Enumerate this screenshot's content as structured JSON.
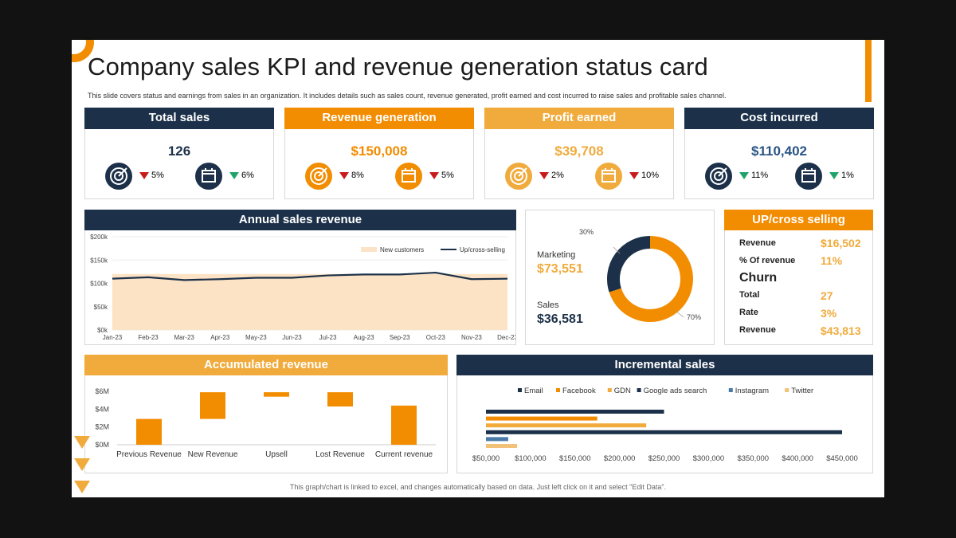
{
  "title": "Company sales KPI and revenue generation status card",
  "subtitle": "This slide covers status and earnings from sales in an organization. It includes details such as sales count, revenue generated, profit earned and cost incurred to raise sales and profitable sales channel.",
  "footer": "This graph/chart is linked to excel, and changes automatically based on data. Just left click on it and select \"Edit Data\".",
  "colors": {
    "navy": "#1c3149",
    "orange": "#f28c00",
    "gold": "#f0ab3c",
    "red": "#c81a1a",
    "green": "#1fa36a"
  },
  "kpis": [
    {
      "title": "Total sales",
      "value": "126",
      "pct1": "5%",
      "pct1_dir": "down",
      "pct2": "6%",
      "pct2_dir": "up",
      "icon1": "target-icon",
      "icon2": "calendar-icon"
    },
    {
      "title": "Revenue generation",
      "value": "$150,008",
      "pct1": "8%",
      "pct1_dir": "down",
      "pct2": "5%",
      "pct2_dir": "down",
      "icon1": "target-icon",
      "icon2": "calendar-icon"
    },
    {
      "title": "Profit earned",
      "value": "$39,708",
      "pct1": "2%",
      "pct1_dir": "down",
      "pct2": "10%",
      "pct2_dir": "down",
      "icon1": "target-icon",
      "icon2": "calendar-icon"
    },
    {
      "title": "Cost incurred",
      "value": "$110,402",
      "pct1": "11%",
      "pct1_dir": "up",
      "pct2": "1%",
      "pct2_dir": "up",
      "icon1": "target-icon",
      "icon2": "calendar-icon"
    }
  ],
  "annual": {
    "title": "Annual sales revenue",
    "legend_new": "New customers",
    "legend_up": "Up/cross-selling"
  },
  "donut": {
    "marketing_label": "Marketing",
    "marketing_value": "$73,551",
    "sales_label": "Sales",
    "sales_value": "$36,581",
    "pct_small": "30%",
    "pct_big": "70%"
  },
  "upcross": {
    "title": "UP/cross selling",
    "rows": [
      {
        "label": "Revenue",
        "value": "$16,502"
      },
      {
        "label": "% Of revenue",
        "value": "11%"
      }
    ],
    "churn_label": "Churn",
    "churn_rows": [
      {
        "label": "Total",
        "value": "27"
      },
      {
        "label": "Rate",
        "value": "3%"
      },
      {
        "label": "Revenue",
        "value": "$43,813"
      }
    ]
  },
  "accumulated": {
    "title": "Accumulated revenue"
  },
  "incremental": {
    "title": "Incremental sales"
  },
  "chart_data": [
    {
      "type": "area",
      "title": "Annual sales revenue",
      "categories": [
        "Jan-23",
        "Feb-23",
        "Mar-23",
        "Apr-23",
        "May-23",
        "Jun-23",
        "Jul-23",
        "Aug-23",
        "Sep-23",
        "Oct-23",
        "Nov-23",
        "Dec-23"
      ],
      "y_ticks": [
        "$0k",
        "$50k",
        "$100k",
        "$150k",
        "$200k"
      ],
      "ylim": [
        0,
        200000
      ],
      "series": [
        {
          "name": "New customers",
          "values": [
            120000,
            120000,
            120000,
            120000,
            120000,
            120000,
            120000,
            120000,
            120000,
            120000,
            120000,
            120000
          ]
        },
        {
          "name": "Up/cross-selling",
          "values": [
            110000,
            113000,
            107000,
            109000,
            112000,
            112000,
            117000,
            119000,
            119000,
            123000,
            109000,
            110000
          ]
        }
      ],
      "legend": "top-right"
    },
    {
      "type": "pie",
      "title": "",
      "categories": [
        "Marketing",
        "Sales"
      ],
      "values": [
        70,
        30
      ]
    },
    {
      "type": "bar",
      "title": "Accumulated revenue",
      "categories": [
        "Previous Revenue",
        "New Revenue",
        "Upsell",
        "Lost Revenue",
        "Current revenue"
      ],
      "bars": [
        {
          "from": 0,
          "to": 2.9
        },
        {
          "from": 2.9,
          "to": 5.9
        },
        {
          "from": 5.4,
          "to": 5.9
        },
        {
          "from": 4.3,
          "to": 5.9
        },
        {
          "from": 0,
          "to": 4.4
        }
      ],
      "y_ticks": [
        "$0M",
        "$2M",
        "$4M",
        "$6M"
      ],
      "ylim": [
        0,
        6
      ]
    },
    {
      "type": "bar",
      "orientation": "horizontal",
      "title": "Incremental sales",
      "series": [
        {
          "name": "Email",
          "value": 250000,
          "color": "#1c3149"
        },
        {
          "name": "Facebook",
          "value": 175000,
          "color": "#f28c00"
        },
        {
          "name": "GDN",
          "value": 230000,
          "color": "#f0ab3c"
        },
        {
          "name": "Google ads search",
          "value": 450000,
          "color": "#1c3149"
        },
        {
          "name": "Instagram",
          "value": 75000,
          "color": "#4a7aa8"
        },
        {
          "name": "Twitter",
          "value": 85000,
          "color": "#f3c27a"
        }
      ],
      "x_ticks": [
        "$50,000",
        "$100,000",
        "$150,000",
        "$200,000",
        "$250,000",
        "$300,000",
        "$350,000",
        "$400,000",
        "$450,000"
      ],
      "xlim": [
        50000,
        450000
      ]
    }
  ]
}
